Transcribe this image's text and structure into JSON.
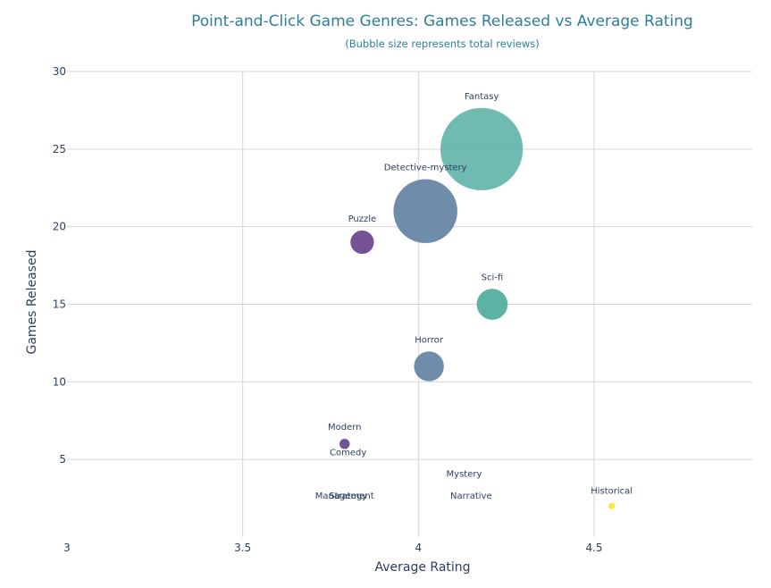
{
  "chart_data": {
    "type": "scatter",
    "title": "Point-and-Click Game Genres: Games Released vs Average Rating",
    "subtitle": "(Bubble size represents total reviews)",
    "xlabel": "Average Rating",
    "ylabel": "Games Released",
    "xlim": [
      3,
      4.95
    ],
    "ylim": [
      0,
      30
    ],
    "xticks": [
      "3",
      "3.5",
      "4",
      "4.5"
    ],
    "yticks": [
      "5",
      "10",
      "15",
      "20",
      "25",
      "30"
    ],
    "grid": true,
    "legend": "none",
    "points": [
      {
        "label": "Fantasy",
        "x": 4.18,
        "y": 25,
        "size": 100,
        "color": "#5fb3a9"
      },
      {
        "label": "Detective-mystery",
        "x": 4.02,
        "y": 21,
        "size": 60,
        "color": "#5f7fa2"
      },
      {
        "label": "Puzzle",
        "x": 3.84,
        "y": 19,
        "size": 8,
        "color": "#643f8a"
      },
      {
        "label": "Sci-fi",
        "x": 4.21,
        "y": 15,
        "size": 14,
        "color": "#4aab9a"
      },
      {
        "label": "Horror",
        "x": 4.03,
        "y": 11,
        "size": 13,
        "color": "#5f7fa2"
      },
      {
        "label": "Modern",
        "x": 3.79,
        "y": 6,
        "size": 1.5,
        "color": "#643f8a"
      },
      {
        "label": "Comedy",
        "x": 3.8,
        "y": 4.7,
        "size": 0,
        "color": "#643f8a"
      },
      {
        "label": "Mystery",
        "x": 4.13,
        "y": 3.3,
        "size": 0,
        "color": "#5f7fa2"
      },
      {
        "label": "Narrative",
        "x": 4.15,
        "y": 1.9,
        "size": 0,
        "color": "#5f7fa2"
      },
      {
        "label": "Management",
        "x": 3.79,
        "y": 1.9,
        "size": 0,
        "color": "#643f8a"
      },
      {
        "label": "Strategy",
        "x": 3.8,
        "y": 1.9,
        "size": 0,
        "color": "#643f8a"
      },
      {
        "label": "Historical",
        "x": 4.55,
        "y": 2,
        "size": 0.6,
        "color": "#fde725"
      }
    ]
  }
}
